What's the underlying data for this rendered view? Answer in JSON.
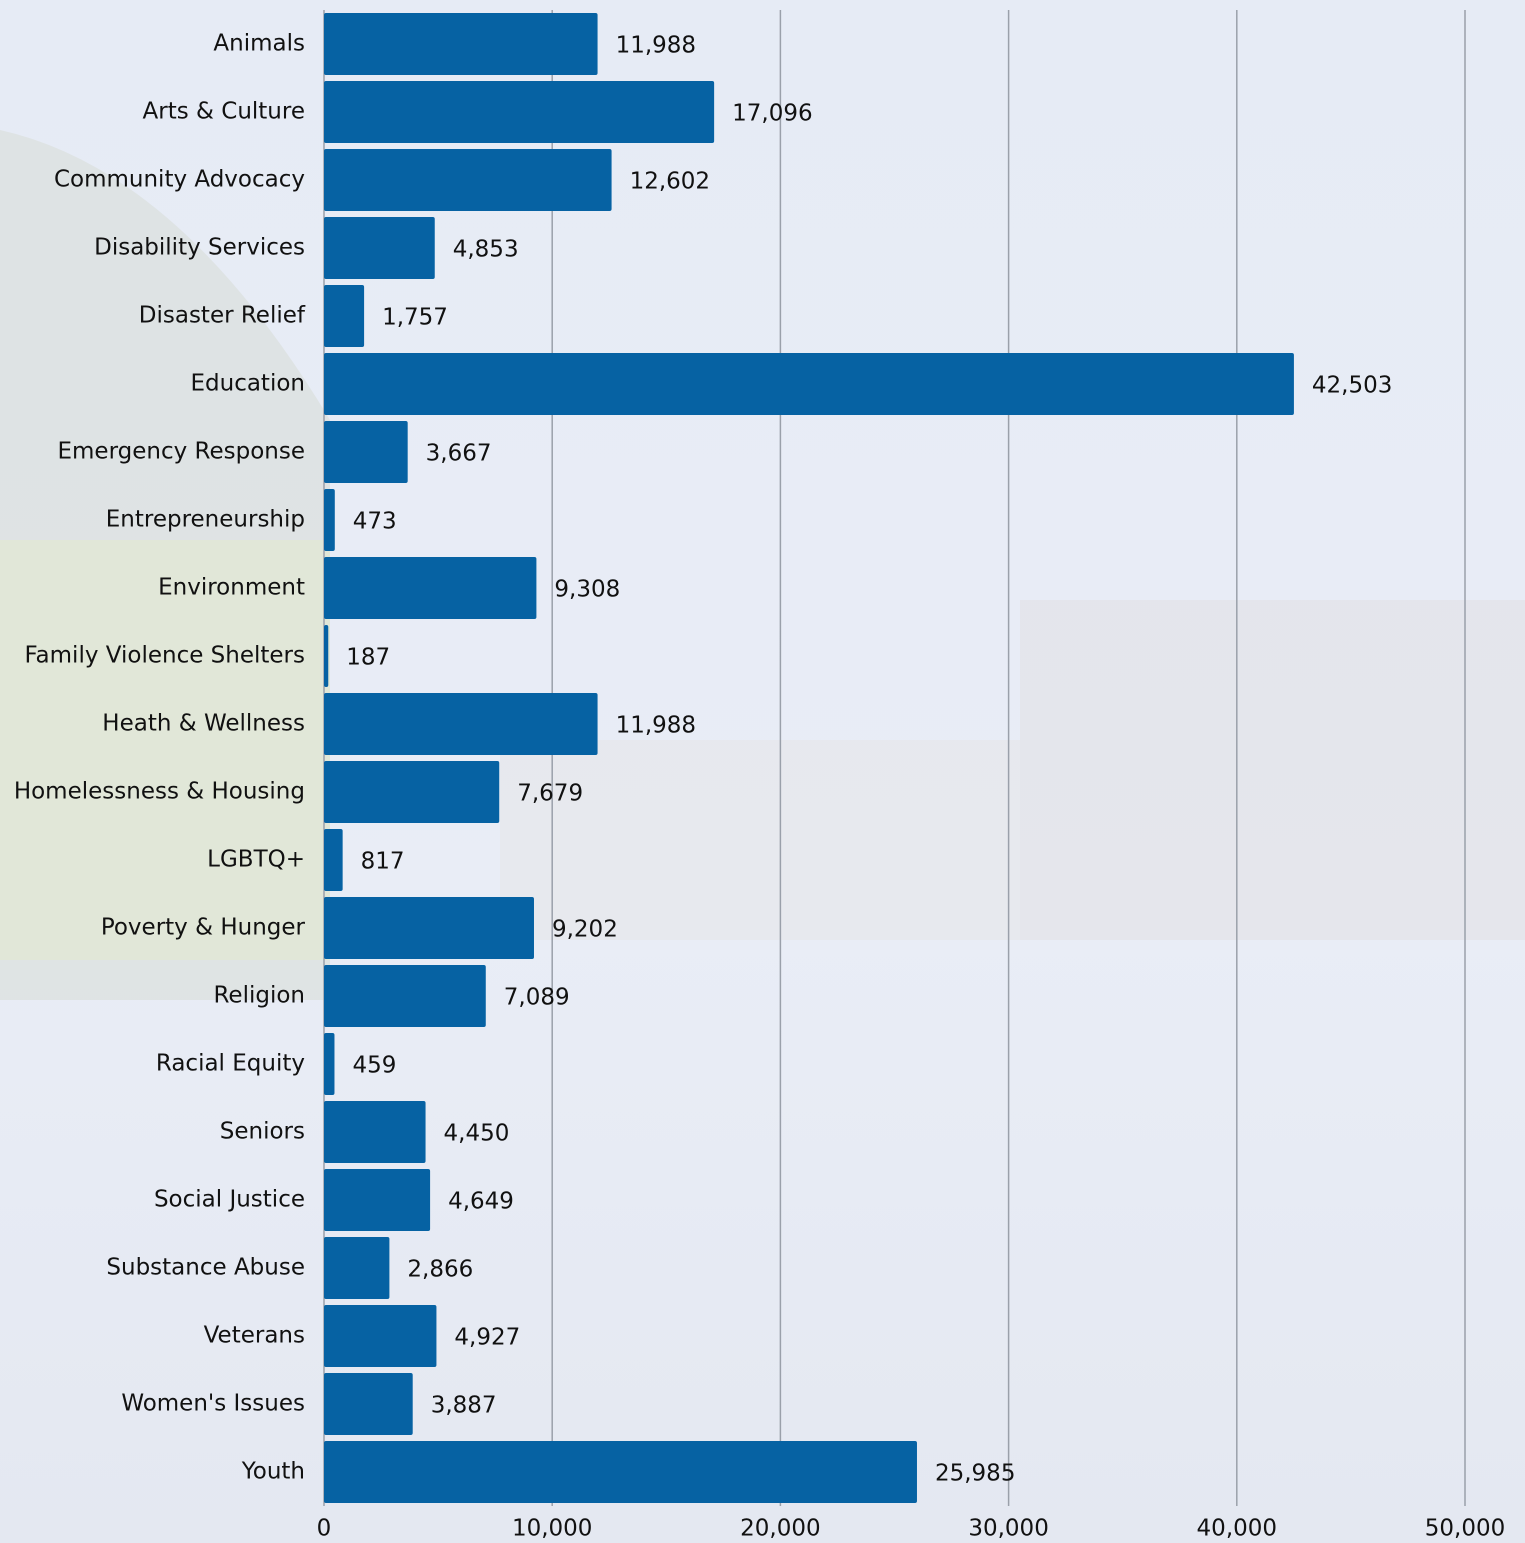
{
  "chart_data": {
    "type": "bar",
    "orientation": "horizontal",
    "categories": [
      "Animals",
      "Arts & Culture",
      "Community Advocacy",
      "Disability Services",
      "Disaster Relief",
      "Education",
      "Emergency Response",
      "Entrepreneurship",
      "Environment",
      "Family Violence Shelters",
      "Heath & Wellness",
      "Homelessness & Housing",
      "LGBTQ+",
      "Poverty & Hunger",
      "Religion",
      "Racial Equity",
      "Seniors",
      "Social Justice",
      "Substance Abuse",
      "Veterans",
      "Women's Issues",
      "Youth"
    ],
    "values": [
      11988,
      17096,
      12602,
      4853,
      1757,
      42503,
      3667,
      473,
      9308,
      187,
      11988,
      7679,
      817,
      9202,
      7089,
      459,
      4450,
      4649,
      2866,
      4927,
      3887,
      25985
    ],
    "value_labels": [
      "11,988",
      "17,096",
      "12,602",
      "4,853",
      "1,757",
      "42,503",
      "3,667",
      "473",
      "9,308",
      "187",
      "11,988",
      "7,679",
      "817",
      "9,202",
      "7,089",
      "459",
      "4,450",
      "4,649",
      "2,866",
      "4,927",
      "3,887",
      "25,985"
    ],
    "color": "#0662a3",
    "xlim": [
      0,
      50000
    ],
    "xticks": [
      0,
      {
        "value": 10000,
        "label": "10,000"
      },
      {
        "value": 20000,
        "label": "20,000"
      },
      {
        "value": 30000,
        "label": "30,000"
      },
      {
        "value": 40000,
        "label": "40,000"
      },
      {
        "value": 50000,
        "label": "50,000"
      }
    ],
    "grid": true
  }
}
